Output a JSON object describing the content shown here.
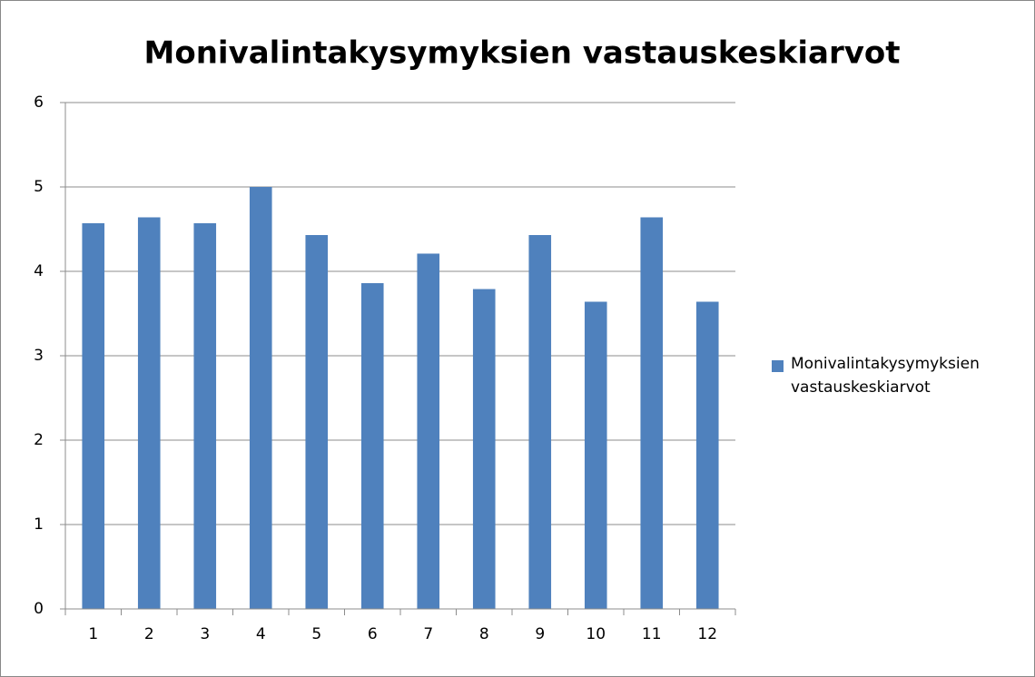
{
  "chart_data": {
    "type": "bar",
    "title": "Monivalintakysymyksien vastauskeskiarvot",
    "categories": [
      "1",
      "2",
      "3",
      "4",
      "5",
      "6",
      "7",
      "8",
      "9",
      "10",
      "11",
      "12"
    ],
    "series": [
      {
        "name": "Monivalintakysymyksien vastauskeskiarvot",
        "color": "#4f81bd",
        "values": [
          4.57,
          4.64,
          4.57,
          5,
          4.43,
          3.86,
          4.21,
          3.79,
          4.43,
          3.64,
          4.64,
          3.64
        ]
      }
    ],
    "ylim": [
      0,
      6
    ],
    "yticks": [
      0,
      1,
      2,
      3,
      4,
      5,
      6
    ],
    "grid": true,
    "legend": "right"
  }
}
